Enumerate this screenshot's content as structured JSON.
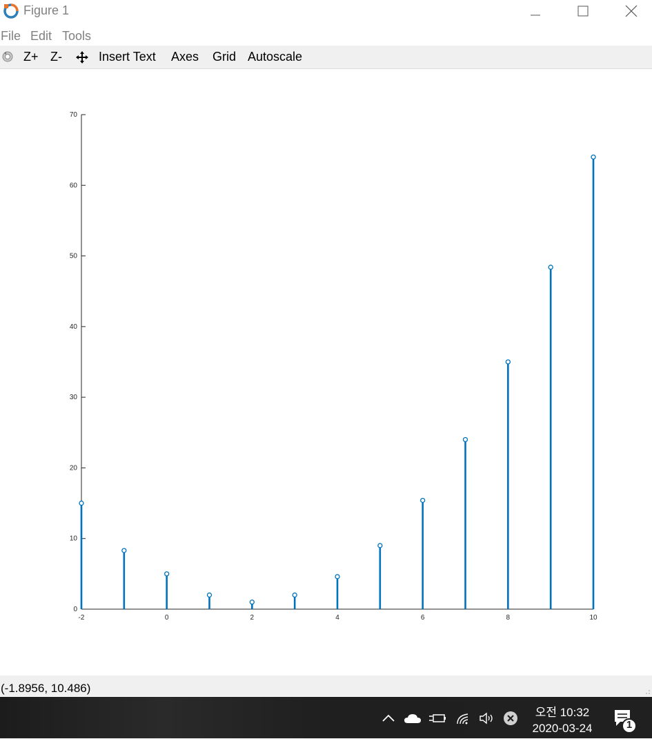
{
  "window": {
    "title": "Figure 1",
    "minimize_glyph": "—",
    "maximize_glyph": "☐",
    "close_glyph": "✕"
  },
  "menu": {
    "items": [
      "File",
      "Edit",
      "Tools"
    ]
  },
  "toolbar": {
    "zoom_in": "Z+",
    "zoom_out": "Z-",
    "insert_text": "Insert Text",
    "axes": "Axes",
    "grid": "Grid",
    "autoscale": "Autoscale"
  },
  "status": {
    "pointer_coords": "(-1.8956, 10.486)"
  },
  "taskbar": {
    "time": "오전 10:32",
    "date": "2020-03-24",
    "notification_count": "1"
  },
  "colors": {
    "stem": "#0072bd",
    "status_bg": "#f0f0f0",
    "toolbar_bg": "#f0f0f0"
  },
  "icons": [
    "octave-logo-icon",
    "rotate-icon",
    "pan-icon",
    "chevron-up-icon",
    "onedrive-cloud-icon",
    "power-plug-icon",
    "wifi-icon",
    "volume-icon",
    "error-icon",
    "notification-icon"
  ],
  "chart_data": {
    "type": "stem",
    "x": [
      -2,
      -1,
      0,
      1,
      2,
      3,
      4,
      5,
      6,
      7,
      8,
      9,
      10
    ],
    "y": [
      15,
      8.3,
      5,
      2,
      1,
      2,
      4.6,
      9,
      15.4,
      24,
      35,
      48.4,
      64
    ],
    "xlim": [
      -2,
      10
    ],
    "ylim": [
      0,
      70
    ],
    "xticks": [
      "-2",
      "0",
      "2",
      "4",
      "6",
      "8",
      "10"
    ],
    "yticks": [
      "0",
      "10",
      "20",
      "30",
      "40",
      "50",
      "60",
      "70"
    ],
    "title": "",
    "xlabel": "",
    "ylabel": "",
    "grid": false,
    "marker": "circle"
  }
}
